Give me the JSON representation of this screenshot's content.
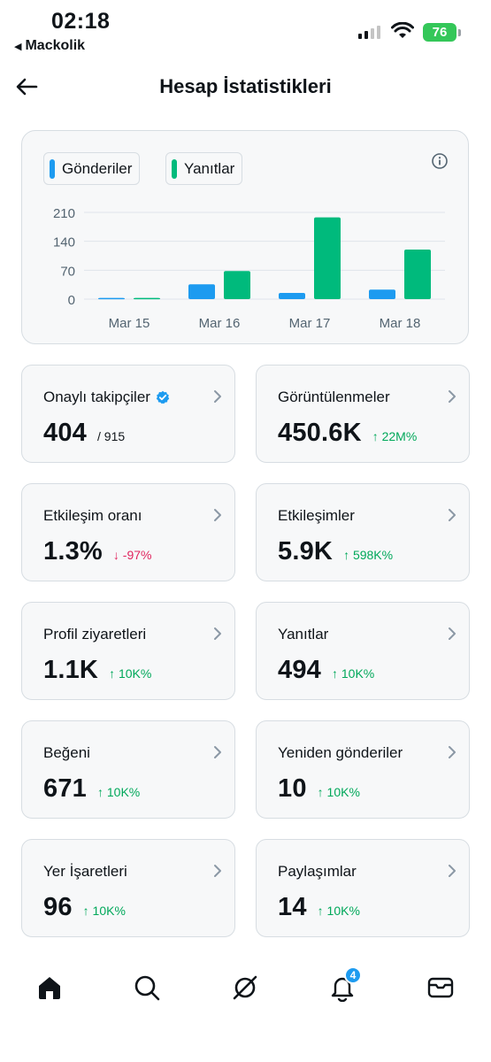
{
  "status_bar": {
    "time": "02:18",
    "back_app": "Mackolik",
    "battery": "76"
  },
  "header": {
    "title": "Hesap İstatistikleri"
  },
  "chart_data": {
    "type": "bar",
    "categories": [
      "Mar 15",
      "Mar 16",
      "Mar 17",
      "Mar 18"
    ],
    "series": [
      {
        "name": "Gönderiler",
        "values": [
          3,
          36,
          15,
          23
        ],
        "color": "#1d9bf0"
      },
      {
        "name": "Yanıtlar",
        "values": [
          3,
          68,
          198,
          120
        ],
        "color": "#00ba7c"
      }
    ],
    "yticks": [
      "210",
      "140",
      "70",
      "0"
    ],
    "ylim": [
      0,
      210
    ],
    "grid": true,
    "legend_position": "top-left"
  },
  "stats": [
    {
      "label": "Onaylı takipçiler",
      "value": "404",
      "sub": "/ 915",
      "verified": true
    },
    {
      "label": "Görüntülenmeler",
      "value": "450.6K",
      "change": "↑ 22M%",
      "direction": "up"
    },
    {
      "label": "Etkileşim oranı",
      "value": "1.3%",
      "change": "↓ -97%",
      "direction": "down"
    },
    {
      "label": "Etkileşimler",
      "value": "5.9K",
      "change": "↑ 598K%",
      "direction": "up"
    },
    {
      "label": "Profil ziyaretleri",
      "value": "1.1K",
      "change": "↑ 10K%",
      "direction": "up"
    },
    {
      "label": "Yanıtlar",
      "value": "494",
      "change": "↑ 10K%",
      "direction": "up"
    },
    {
      "label": "Beğeni",
      "value": "671",
      "change": "↑ 10K%",
      "direction": "up"
    },
    {
      "label": "Yeniden gönderiler",
      "value": "10",
      "change": "↑ 10K%",
      "direction": "up"
    },
    {
      "label": "Yer İşaretleri",
      "value": "96",
      "change": "↑ 10K%",
      "direction": "up"
    },
    {
      "label": "Paylaşımlar",
      "value": "14",
      "change": "↑ 10K%",
      "direction": "up"
    }
  ],
  "bottom_nav": {
    "items": [
      "home-icon",
      "search-icon",
      "grok-icon",
      "notifications-icon",
      "messages-icon"
    ],
    "notification_badge": "4"
  }
}
